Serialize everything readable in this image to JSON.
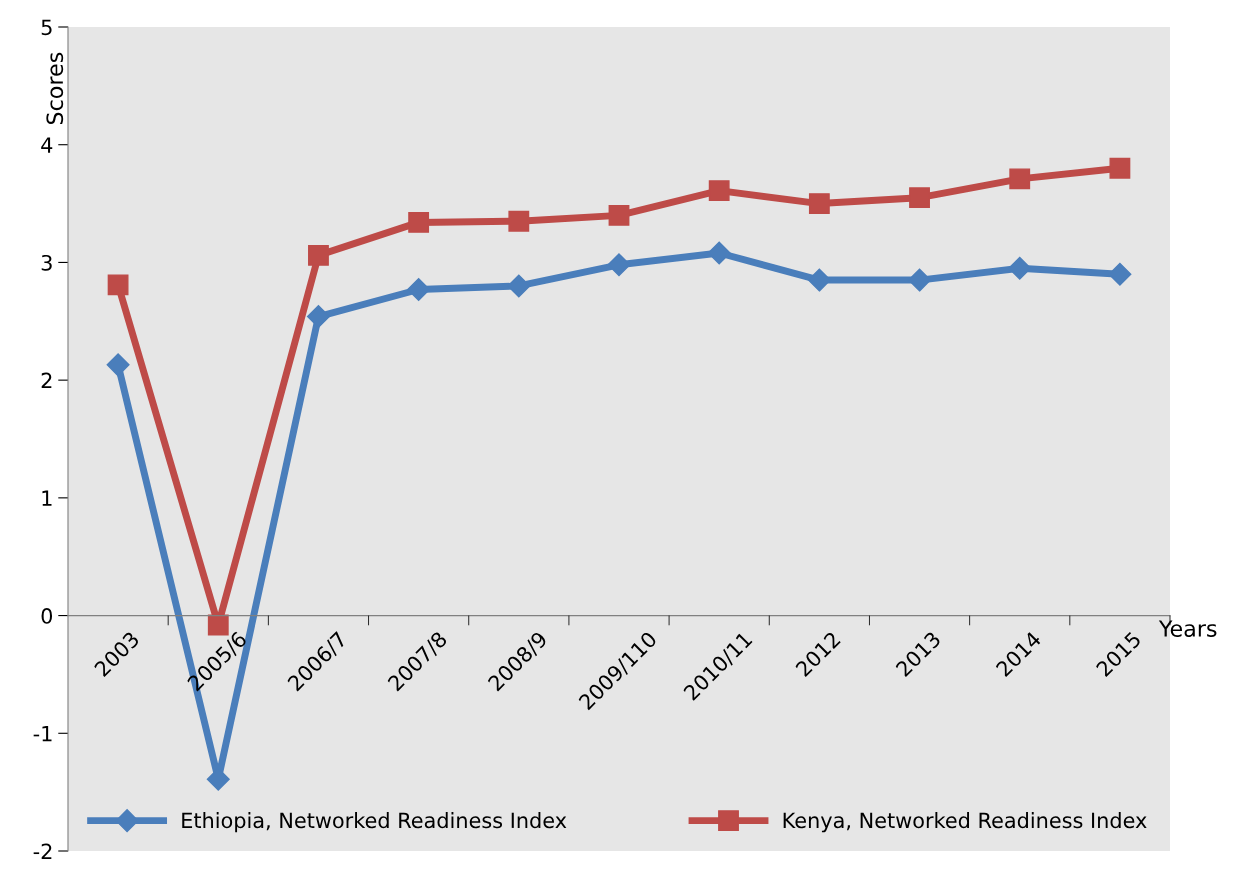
{
  "chart_data": {
    "type": "line",
    "xlabel": "Years",
    "ylabel": "Scores",
    "categories": [
      "2003",
      "2005/6",
      "2006/7",
      "2007/8",
      "2008/9",
      "2009/110",
      "2010/11",
      "2012",
      "2013",
      "2014",
      "2015"
    ],
    "series": [
      {
        "name": "Ethiopia, Networked Readiness Index",
        "color": "#4a7ebb",
        "marker": "diamond",
        "values": [
          2.13,
          -1.39,
          2.54,
          2.77,
          2.8,
          2.98,
          3.08,
          2.85,
          2.85,
          2.95,
          2.9
        ]
      },
      {
        "name": "Kenya, Networked Readiness Index",
        "color": "#be4b48",
        "marker": "square",
        "values": [
          2.81,
          -0.08,
          3.06,
          3.34,
          3.35,
          3.4,
          3.61,
          3.5,
          3.55,
          3.71,
          3.8
        ]
      }
    ],
    "ylim": [
      -2,
      5
    ],
    "yticks": [
      -2,
      -1,
      0,
      1,
      2,
      3,
      4,
      5
    ],
    "grid": false,
    "legend": "bottom"
  }
}
